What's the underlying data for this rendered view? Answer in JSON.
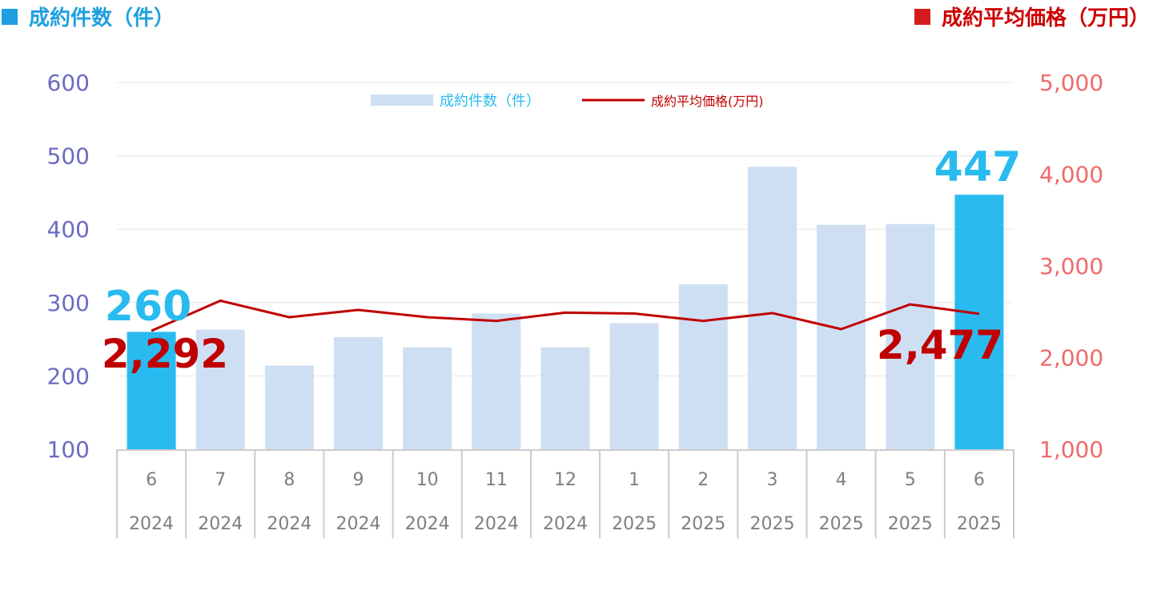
{
  "header": {
    "left_title": "成約件数（件）",
    "right_title": "成約平均価格（万円）"
  },
  "colors": {
    "bar_normal": "#cfdff3",
    "bar_highlight": "#29bbef",
    "line": "#c00000",
    "left_axis": "#6b6bc4",
    "right_axis": "#f06a6a",
    "grid": "#e6e6e6",
    "header_left": "#1e9fe0",
    "header_right": "#cc0000"
  },
  "chart_data": {
    "type": "bar",
    "categories": [
      [
        "6",
        "2024"
      ],
      [
        "7",
        "2024"
      ],
      [
        "8",
        "2024"
      ],
      [
        "9",
        "2024"
      ],
      [
        "10",
        "2024"
      ],
      [
        "11",
        "2024"
      ],
      [
        "12",
        "2024"
      ],
      [
        "1",
        "2025"
      ],
      [
        "2",
        "2025"
      ],
      [
        "3",
        "2025"
      ],
      [
        "4",
        "2025"
      ],
      [
        "5",
        "2025"
      ],
      [
        "6",
        "2025"
      ]
    ],
    "series": [
      {
        "name": "成約件数（件）",
        "type": "bar",
        "axis": "left",
        "values": [
          260,
          263,
          214,
          253,
          239,
          285,
          239,
          272,
          325,
          485,
          406,
          407,
          447
        ],
        "highlight": [
          0,
          12
        ]
      },
      {
        "name": "成約平均価格(万円)",
        "type": "line",
        "axis": "right",
        "values": [
          2292,
          2620,
          2440,
          2520,
          2440,
          2400,
          2490,
          2480,
          2400,
          2485,
          2310,
          2580,
          2477
        ]
      }
    ],
    "y_left": {
      "min": 100,
      "max": 600,
      "ticks": [
        "100",
        "200",
        "300",
        "400",
        "500",
        "600"
      ]
    },
    "y_right": {
      "min": 1000,
      "max": 5000,
      "ticks": [
        "1,000",
        "2,000",
        "3,000",
        "4,000",
        "5,000"
      ]
    },
    "data_labels": [
      {
        "series": 0,
        "index": 0,
        "text": "260"
      },
      {
        "series": 0,
        "index": 12,
        "text": "447"
      },
      {
        "series": 1,
        "index": 0,
        "text": "2,292"
      },
      {
        "series": 1,
        "index": 12,
        "text": "2,477"
      }
    ],
    "legend": {
      "position": "top-center",
      "bar_label": "成約件数（件）",
      "line_label": "成約平均価格(万円)"
    },
    "grid": true
  }
}
